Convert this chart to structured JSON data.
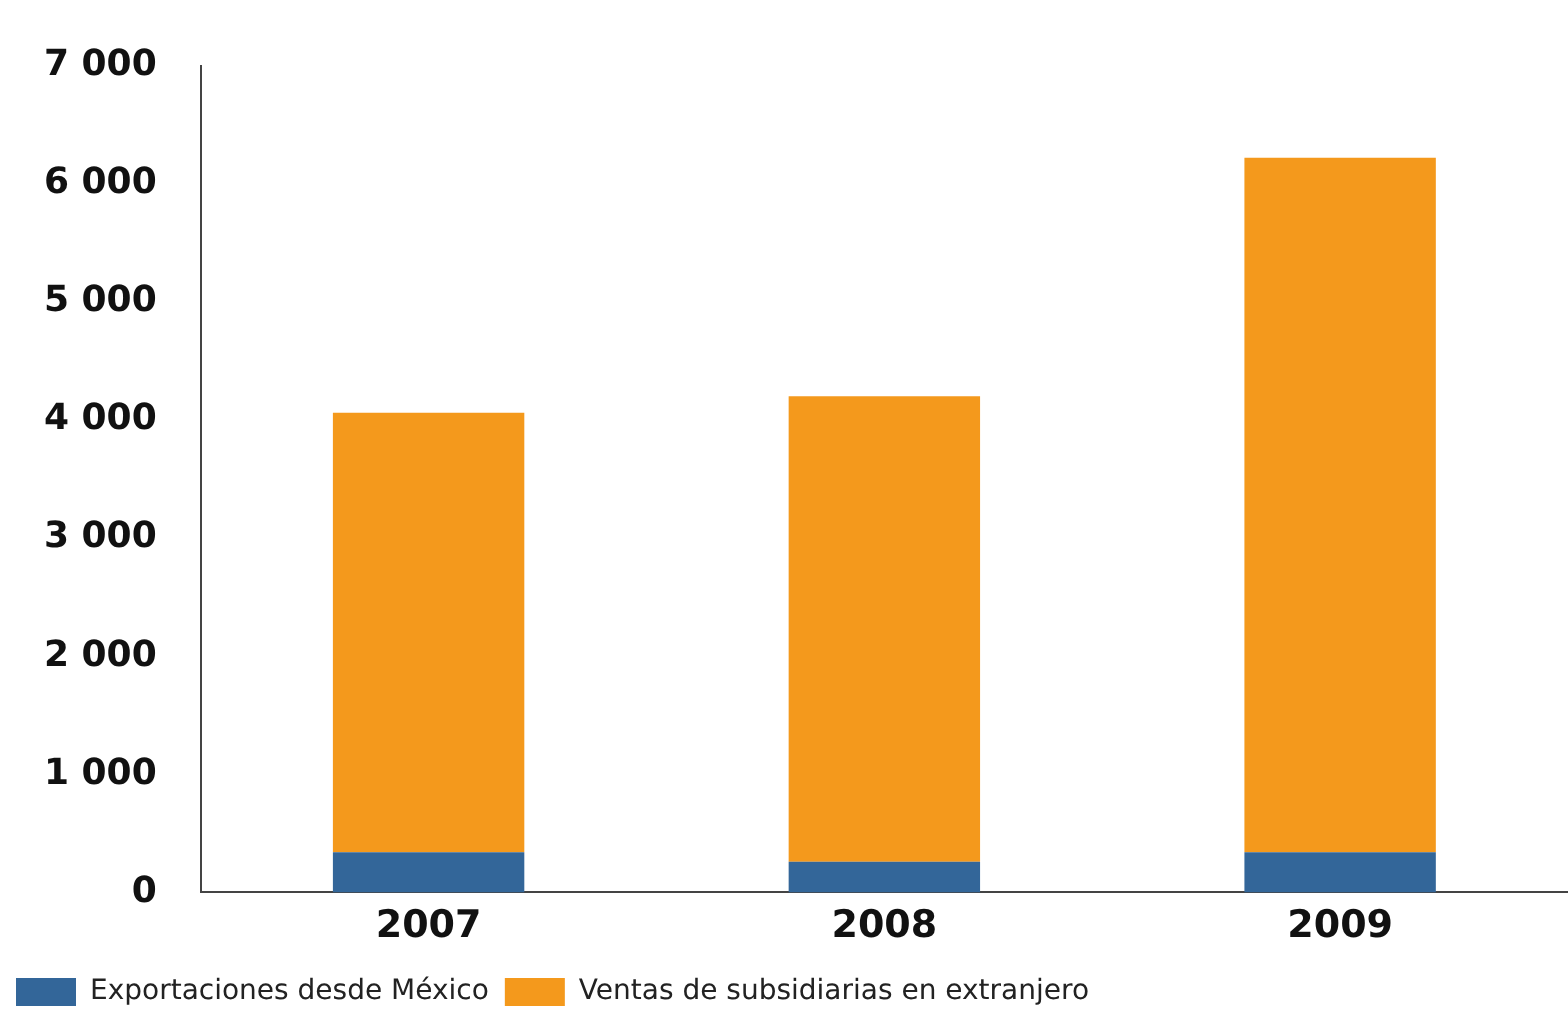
{
  "chart_data": {
    "type": "bar",
    "stacked": true,
    "categories": [
      "2007",
      "2008",
      "2009"
    ],
    "series": [
      {
        "name": "Exportaciones desde México",
        "color": "#336699",
        "values": [
          340,
          260,
          340
        ]
      },
      {
        "name": "Ventas de subsidiarias en extranjero",
        "color": "#f4991c",
        "values": [
          3720,
          3940,
          5880
        ]
      }
    ],
    "ylim": [
      0,
      7000
    ],
    "yticks": [
      {
        "value": 0,
        "label": "0"
      },
      {
        "value": 1000,
        "label": "1 000"
      },
      {
        "value": 2000,
        "label": "2 000"
      },
      {
        "value": 3000,
        "label": "3 000"
      },
      {
        "value": 4000,
        "label": "4 000"
      },
      {
        "value": 5000,
        "label": "5 000"
      },
      {
        "value": 6000,
        "label": "6 000"
      },
      {
        "value": 7000,
        "label": "7 000"
      }
    ],
    "grid": false,
    "legend": "bottom"
  }
}
